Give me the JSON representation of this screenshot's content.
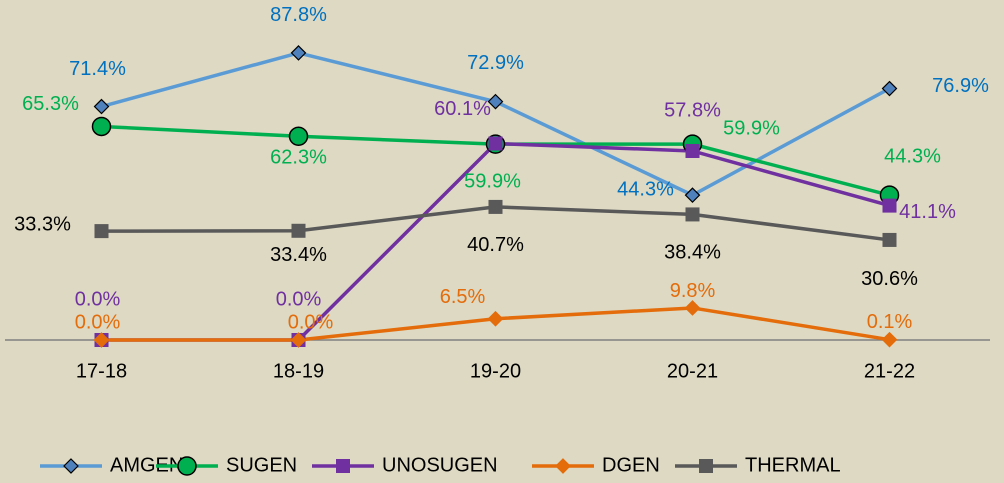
{
  "chart_data": {
    "type": "line",
    "categories": [
      "17-18",
      "18-19",
      "19-20",
      "20-21",
      "21-22"
    ],
    "ylim": [
      0,
      100
    ],
    "legend": "bottom",
    "series": [
      {
        "name": "AMGEN",
        "color": "#5b9bd5",
        "label_color": "#0070c0",
        "marker": "diamond",
        "marker_fill": "#4f81bd",
        "values": [
          71.4,
          87.8,
          72.9,
          44.3,
          76.9
        ],
        "value_labels": [
          "71.4%",
          "87.8%",
          "72.9%",
          "44.3%",
          "76.9%"
        ]
      },
      {
        "name": "SUGEN",
        "color": "#00b050",
        "label_color": "#00b050",
        "marker": "circle",
        "marker_fill": "#00b050",
        "values": [
          65.3,
          62.3,
          59.9,
          59.9,
          44.3
        ],
        "value_labels": [
          "65.3%",
          "62.3%",
          "59.9%",
          "59.9%",
          "44.3%"
        ]
      },
      {
        "name": "UNOSUGEN",
        "color": "#7030a0",
        "label_color": "#7030a0",
        "marker": "square",
        "marker_fill": "#7030a0",
        "values": [
          0.0,
          0.0,
          60.1,
          57.8,
          41.1
        ],
        "value_labels": [
          "0.0%",
          "0.0%",
          "60.1%",
          "57.8%",
          "41.1%"
        ]
      },
      {
        "name": "DGEN",
        "color": "#e46c0a",
        "label_color": "#e46c0a",
        "marker": "diamond",
        "marker_fill": "#e46c0a",
        "values": [
          0.0,
          0.0,
          6.5,
          9.8,
          0.1
        ],
        "value_labels": [
          "0.0%",
          "0.0%",
          "6.5%",
          "9.8%",
          "0.1%"
        ]
      },
      {
        "name": "THERMAL",
        "color": "#595959",
        "label_color": "#000000",
        "marker": "square",
        "marker_fill": "#595959",
        "values": [
          33.3,
          33.4,
          40.7,
          38.4,
          30.6
        ],
        "value_labels": [
          "33.3%",
          "33.4%",
          "40.7%",
          "38.4%",
          "30.6%"
        ]
      }
    ]
  }
}
